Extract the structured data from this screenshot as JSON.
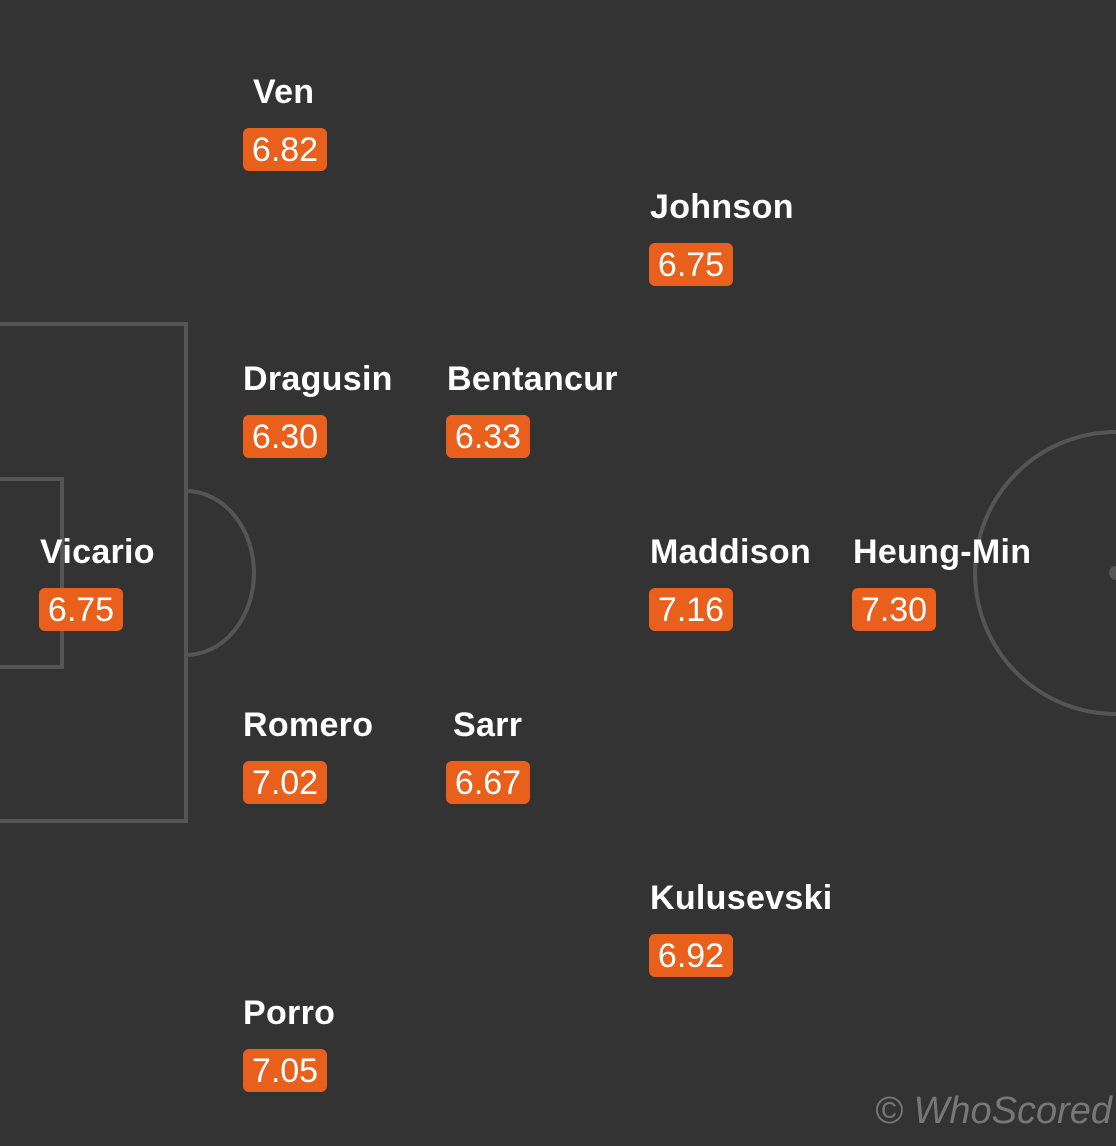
{
  "colors": {
    "background": "#333333",
    "pitch_lines": "#555555",
    "rating_badge": "#e8601c"
  },
  "players": [
    {
      "name": "Ven",
      "rating": "6.82"
    },
    {
      "name": "Johnson",
      "rating": "6.75"
    },
    {
      "name": "Dragusin",
      "rating": "6.30"
    },
    {
      "name": "Bentancur",
      "rating": "6.33"
    },
    {
      "name": "Vicario",
      "rating": "6.75"
    },
    {
      "name": "Maddison",
      "rating": "7.16"
    },
    {
      "name": "Heung-Min",
      "rating": "7.30"
    },
    {
      "name": "Romero",
      "rating": "7.02"
    },
    {
      "name": "Sarr",
      "rating": "6.67"
    },
    {
      "name": "Kulusevski",
      "rating": "6.92"
    },
    {
      "name": "Porro",
      "rating": "7.05"
    }
  ],
  "watermark": "© WhoScored"
}
